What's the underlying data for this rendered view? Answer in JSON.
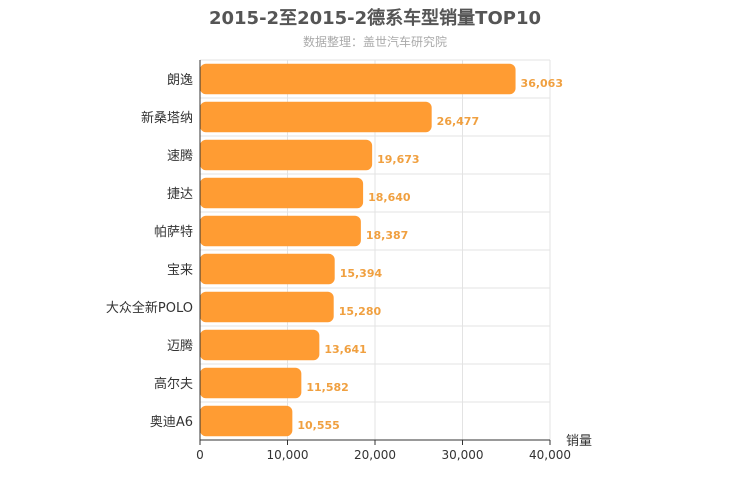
{
  "chart_data": {
    "type": "bar",
    "orientation": "horizontal",
    "title": "2015-2至2015-2德系车型销量TOP10",
    "subtitle": "数据整理：盖世汽车研究院",
    "xlabel": "销量",
    "categories": [
      "朗逸",
      "新桑塔纳",
      "速腾",
      "捷达",
      "帕萨特",
      "宝来",
      "大众全新POLO",
      "迈腾",
      "高尔夫",
      "奥迪A6"
    ],
    "values": [
      36063,
      26477,
      19673,
      18640,
      18387,
      15394,
      15280,
      13641,
      11582,
      10555
    ],
    "value_labels": [
      "36,063",
      "26,477",
      "19,673",
      "18,640",
      "18,387",
      "15,394",
      "15,280",
      "13,641",
      "11,582",
      "10,555"
    ],
    "xlim": [
      0,
      40000
    ],
    "xticks": [
      0,
      10000,
      20000,
      30000,
      40000
    ],
    "xtick_labels": [
      "0",
      "10,000",
      "20,000",
      "30,000",
      "40,000"
    ],
    "grid": true,
    "legend": "none",
    "colors": {
      "bar": "#ff9c33",
      "value_label": "#f0a040",
      "grid": "#e3e3e3",
      "title": "#555555",
      "subtitle": "#aaaaaa"
    }
  }
}
